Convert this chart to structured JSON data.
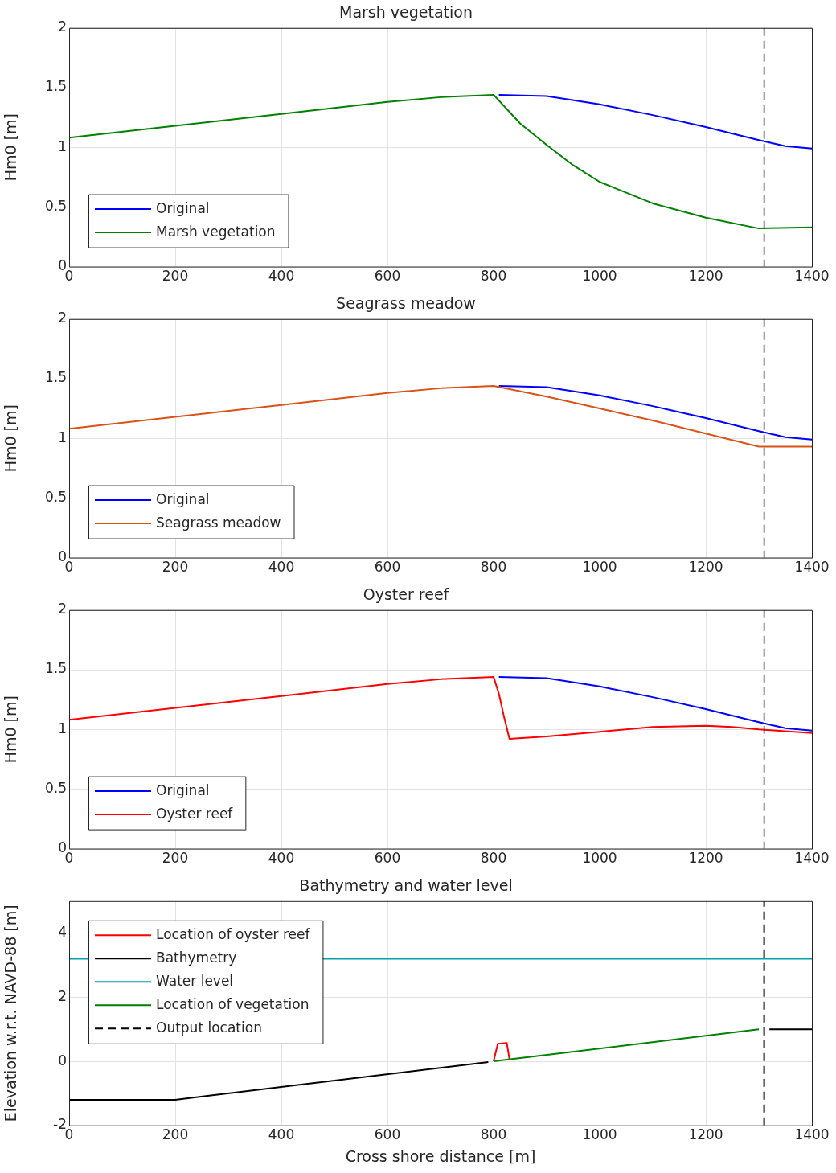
{
  "chart_data": [
    {
      "type": "line",
      "title": "Marsh vegetation",
      "ylabel": "Hm0 [m]",
      "xlim": [
        0,
        1400
      ],
      "xticks": [
        0,
        200,
        400,
        600,
        800,
        1000,
        1200,
        1400
      ],
      "ylim": [
        0,
        2
      ],
      "yticks": [
        0,
        0.5,
        1,
        1.5,
        2
      ],
      "grid": true,
      "legend": "bottom left",
      "line_style": "solid",
      "marker": "none",
      "ref_lines": [
        {
          "axis": "x",
          "value": 1310,
          "color": "#000000",
          "line_style": "dashed"
        }
      ],
      "series": [
        {
          "name": "Original",
          "color": "#0000ff",
          "x": [
            810,
            900,
            1000,
            1100,
            1200,
            1300,
            1350,
            1400
          ],
          "values": [
            1.44,
            1.43,
            1.36,
            1.27,
            1.17,
            1.06,
            1.01,
            0.99
          ]
        },
        {
          "name": "Marsh vegetation",
          "color": "#008000",
          "x": [
            0,
            200,
            400,
            600,
            700,
            800,
            850,
            900,
            950,
            1000,
            1100,
            1200,
            1300,
            1400
          ],
          "values": [
            1.08,
            1.18,
            1.28,
            1.38,
            1.42,
            1.44,
            1.2,
            1.02,
            0.85,
            0.71,
            0.53,
            0.41,
            0.32,
            0.33
          ]
        }
      ]
    },
    {
      "type": "line",
      "title": "Seagrass meadow",
      "ylabel": "Hm0 [m]",
      "xlim": [
        0,
        1400
      ],
      "xticks": [
        0,
        200,
        400,
        600,
        800,
        1000,
        1200,
        1400
      ],
      "ylim": [
        0,
        2
      ],
      "yticks": [
        0,
        0.5,
        1,
        1.5,
        2
      ],
      "grid": true,
      "legend": "bottom left",
      "line_style": "solid",
      "marker": "none",
      "ref_lines": [
        {
          "axis": "x",
          "value": 1310,
          "color": "#000000",
          "line_style": "dashed"
        }
      ],
      "series": [
        {
          "name": "Original",
          "color": "#0000ff",
          "x": [
            810,
            900,
            1000,
            1100,
            1200,
            1300,
            1350,
            1400
          ],
          "values": [
            1.44,
            1.43,
            1.36,
            1.27,
            1.17,
            1.06,
            1.01,
            0.99
          ]
        },
        {
          "name": "Seagrass meadow",
          "color": "#d95319",
          "x": [
            0,
            200,
            400,
            600,
            700,
            800,
            900,
            1000,
            1100,
            1200,
            1300,
            1400
          ],
          "values": [
            1.08,
            1.18,
            1.28,
            1.38,
            1.42,
            1.44,
            1.35,
            1.25,
            1.15,
            1.04,
            0.93,
            0.93
          ]
        }
      ]
    },
    {
      "type": "line",
      "title": "Oyster reef",
      "ylabel": "Hm0 [m]",
      "xlim": [
        0,
        1400
      ],
      "xticks": [
        0,
        200,
        400,
        600,
        800,
        1000,
        1200,
        1400
      ],
      "ylim": [
        0,
        2
      ],
      "yticks": [
        0,
        0.5,
        1,
        1.5,
        2
      ],
      "grid": true,
      "legend": "bottom left",
      "line_style": "solid",
      "marker": "none",
      "ref_lines": [
        {
          "axis": "x",
          "value": 1310,
          "color": "#000000",
          "line_style": "dashed"
        }
      ],
      "series": [
        {
          "name": "Original",
          "color": "#0000ff",
          "x": [
            810,
            900,
            1000,
            1100,
            1200,
            1300,
            1350,
            1400
          ],
          "values": [
            1.44,
            1.43,
            1.36,
            1.27,
            1.17,
            1.06,
            1.01,
            0.99
          ]
        },
        {
          "name": "Oyster reef",
          "color": "#ff0000",
          "x": [
            0,
            200,
            400,
            600,
            700,
            800,
            810,
            820,
            830,
            900,
            1000,
            1100,
            1200,
            1250,
            1300,
            1400
          ],
          "values": [
            1.08,
            1.18,
            1.28,
            1.38,
            1.42,
            1.44,
            1.3,
            1.1,
            0.92,
            0.94,
            0.98,
            1.02,
            1.03,
            1.02,
            1.0,
            0.97
          ]
        }
      ]
    },
    {
      "type": "line",
      "title": "Bathymetry and water level",
      "xlabel": "Cross shore distance [m]",
      "ylabel": "Elevation w.r.t. NAVD-88 [m]",
      "xlim": [
        0,
        1400
      ],
      "xticks": [
        0,
        200,
        400,
        600,
        800,
        1000,
        1200,
        1400
      ],
      "ylim": [
        -2,
        5
      ],
      "yticks": [
        -2,
        0,
        2,
        4
      ],
      "grid": true,
      "legend": "top left",
      "line_style": "solid",
      "marker": "none",
      "series": [
        {
          "name": "Location of oyster reef",
          "color": "#ff0000",
          "x": [
            800,
            808,
            825,
            830
          ],
          "values": [
            0,
            0.55,
            0.57,
            0.06
          ]
        },
        {
          "name": "Bathymetry",
          "color": "#000000",
          "x": [
            0,
            200,
            790,
            1000,
            1320,
            1400
          ],
          "values": [
            -1.2,
            -1.2,
            -0.02,
            null,
            1.0,
            1.0
          ]
        },
        {
          "name": "Water level",
          "color": "#00a0b0",
          "x": [
            0,
            1400
          ],
          "values": [
            3.2,
            3.2
          ]
        },
        {
          "name": "Location of vegetation",
          "color": "#008000",
          "x": [
            800,
            1300
          ],
          "values": [
            0,
            1.0
          ]
        },
        {
          "name": "Output location",
          "color": "#000000",
          "line_style": "dashed",
          "x": [
            1310,
            1310
          ],
          "values": [
            -2,
            5
          ]
        }
      ]
    }
  ]
}
